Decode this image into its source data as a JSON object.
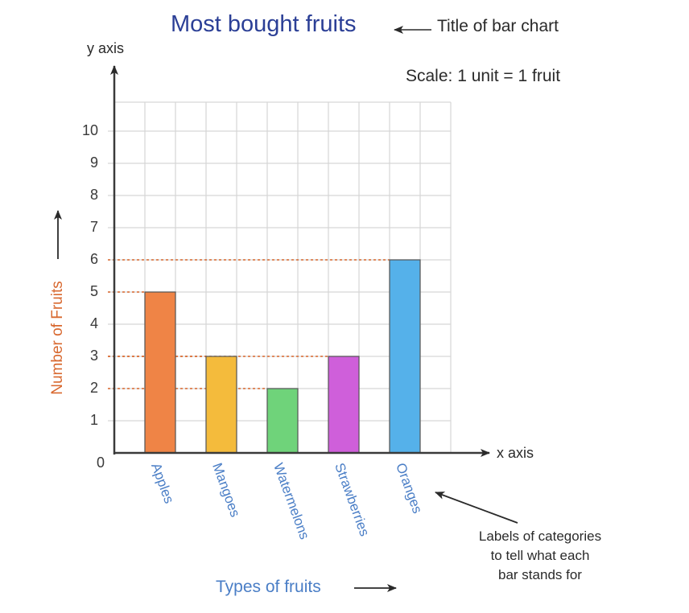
{
  "title": "Most bought fruits",
  "title_annotation": "Title of bar chart",
  "scale_note": "Scale: 1 unit = 1 fruit",
  "y_axis_name": "y axis",
  "x_axis_name": "x axis",
  "y_label": "Number of Fruits",
  "x_label": "Types of fruits",
  "category_annotation": [
    "Labels of categories",
    "to tell what each",
    "bar stands for"
  ],
  "y_ticks": [
    "0",
    "1",
    "2",
    "3",
    "4",
    "5",
    "6",
    "7",
    "8",
    "9",
    "10"
  ],
  "colors": {
    "title": "#2b3f96",
    "y_label": "#d8682f",
    "category_labels": "#4a7ec6",
    "guide_lines": "#d8682f",
    "grid": "#d6d6d6",
    "axis": "#3a3a3a"
  },
  "chart_data": {
    "type": "bar",
    "title": "Most bought fruits",
    "xlabel": "Types of fruits",
    "ylabel": "Number of Fruits",
    "categories": [
      "Apples",
      "Mangoes",
      "Watermelons",
      "Strawberries",
      "Oranges"
    ],
    "values": [
      5,
      3,
      2,
      3,
      6
    ],
    "bar_colors": [
      "#ef8446",
      "#f4bb3c",
      "#6fd37a",
      "#cf5fda",
      "#55b1ea"
    ],
    "ylim": [
      0,
      10
    ],
    "yticks": [
      0,
      1,
      2,
      3,
      4,
      5,
      6,
      7,
      8,
      9,
      10
    ],
    "grid": true,
    "legend": null,
    "annotations": [
      "Title of bar chart",
      "Scale: 1 unit = 1 fruit",
      "Labels of categories to tell what each bar stands for"
    ]
  }
}
